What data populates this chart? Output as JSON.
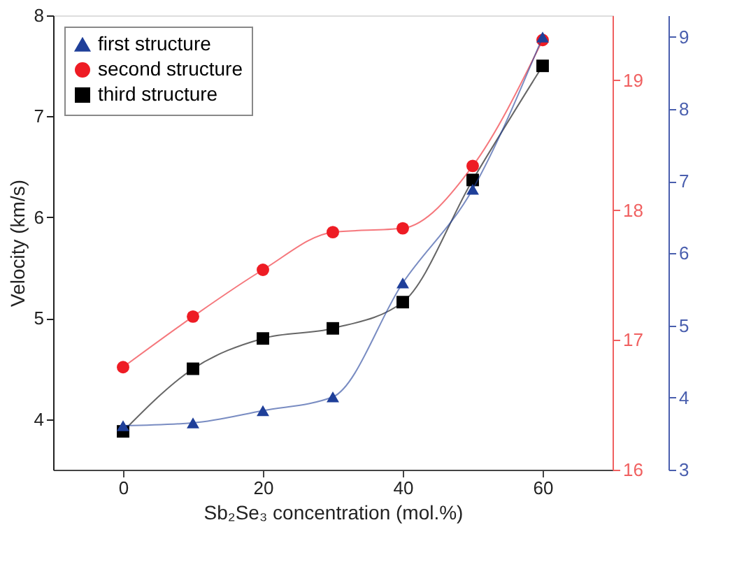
{
  "chart_data": {
    "type": "line",
    "xlabel": "Sb₂Se₃ concentration (mol.%)",
    "ylabel": "Velocity (km/s)",
    "x": [
      0,
      10,
      20,
      30,
      40,
      50,
      60
    ],
    "xlim": [
      -10,
      70
    ],
    "xticks": [
      0,
      20,
      40,
      60
    ],
    "ylim": [
      3.5,
      8
    ],
    "yticks": [
      4,
      5,
      6,
      7,
      8
    ],
    "y2lim": [
      16,
      19.5
    ],
    "y2ticks": [
      16,
      17,
      18,
      19
    ],
    "y3lim": [
      3,
      9.3
    ],
    "y3ticks": [
      3,
      4,
      5,
      6,
      7,
      8,
      9
    ],
    "grid": false,
    "legend": "top left",
    "line_style": "solid",
    "series": [
      {
        "name": "first structure",
        "color": "#1f3f99",
        "axis": "y3",
        "marker": "triangle",
        "values": [
          3.61,
          3.65,
          3.82,
          4.01,
          5.59,
          6.89,
          9.0
        ]
      },
      {
        "name": "second structure",
        "color": "#ee1c24",
        "axis": "y2",
        "marker": "circle",
        "values": [
          16.79,
          17.18,
          17.54,
          17.83,
          17.86,
          18.34,
          19.31
        ]
      },
      {
        "name": "third structure",
        "color": "#000000",
        "axis": "y",
        "marker": "square",
        "values": [
          3.88,
          4.5,
          4.8,
          4.9,
          5.16,
          6.37,
          7.5
        ]
      }
    ]
  }
}
